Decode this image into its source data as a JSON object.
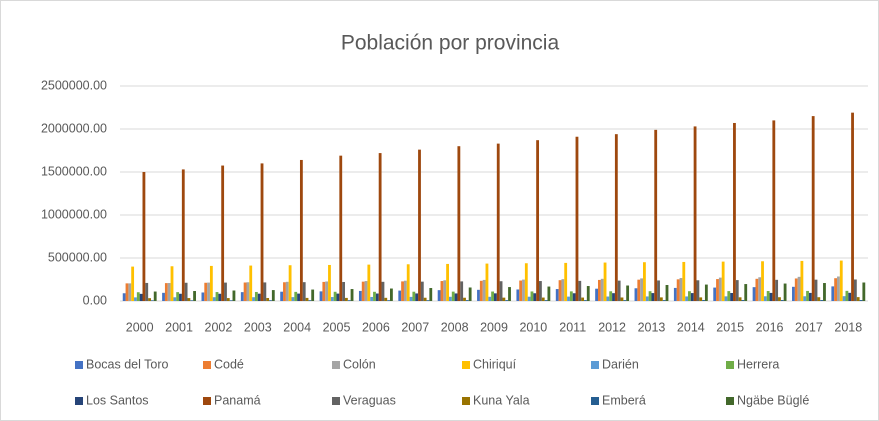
{
  "chart_data": {
    "type": "bar",
    "title": "Población por provincia",
    "categories": [
      "2000",
      "2001",
      "2002",
      "2003",
      "2004",
      "2005",
      "2006",
      "2007",
      "2008",
      "2009",
      "2010",
      "2011",
      "2012",
      "2013",
      "2014",
      "2015",
      "2016",
      "2017",
      "2018"
    ],
    "series": [
      {
        "name": "Bocas del Toro",
        "color": "#4472c4",
        "values": [
          90000,
          95000,
          99000,
          103000,
          108000,
          112000,
          117000,
          121000,
          126000,
          130000,
          134000,
          139000,
          143000,
          148000,
          152000,
          156000,
          161000,
          165000,
          170000
        ]
      },
      {
        "name": "Codé",
        "color": "#ed7d31",
        "values": [
          205000,
          208000,
          212000,
          215000,
          218000,
          222000,
          225000,
          228000,
          232000,
          235000,
          238000,
          242000,
          245000,
          248000,
          252000,
          255000,
          258000,
          262000,
          265000
        ]
      },
      {
        "name": "Colón",
        "color": "#a5a5a5",
        "values": [
          205000,
          209000,
          214000,
          218000,
          223000,
          227000,
          232000,
          236000,
          241000,
          245000,
          249000,
          254000,
          258000,
          263000,
          267000,
          272000,
          276000,
          281000,
          285000
        ]
      },
      {
        "name": "Chiriquí",
        "color": "#ffc000",
        "values": [
          400000,
          404000,
          408000,
          412000,
          416000,
          419000,
          423000,
          427000,
          431000,
          435000,
          439000,
          443000,
          447000,
          451000,
          454000,
          458000,
          462000,
          466000,
          470000
        ]
      },
      {
        "name": "Darién",
        "color": "#5b9bd5",
        "values": [
          42000,
          43000,
          44000,
          44000,
          45000,
          46000,
          47000,
          48000,
          49000,
          49000,
          50000,
          51000,
          52000,
          53000,
          53000,
          54000,
          55000,
          55000,
          56000
        ]
      },
      {
        "name": "Herrera",
        "color": "#70ad47",
        "values": [
          102000,
          103000,
          104000,
          105000,
          106000,
          107000,
          107000,
          108000,
          109000,
          110000,
          111000,
          112000,
          113000,
          114000,
          114000,
          115000,
          116000,
          117000,
          118000
        ]
      },
      {
        "name": "Los Santos",
        "color": "#264478",
        "values": [
          83000,
          84000,
          84000,
          85000,
          86000,
          86000,
          87000,
          88000,
          88000,
          89000,
          90000,
          90000,
          91000,
          92000,
          92000,
          93000,
          94000,
          94000,
          95000
        ]
      },
      {
        "name": "Panamá",
        "color": "#9e480e",
        "values": [
          1500000,
          1530000,
          1575000,
          1600000,
          1640000,
          1690000,
          1720000,
          1760000,
          1800000,
          1830000,
          1870000,
          1910000,
          1940000,
          1990000,
          2030000,
          2070000,
          2100000,
          2150000,
          2190000
        ]
      },
      {
        "name": "Veraguas",
        "color": "#636363",
        "values": [
          210000,
          212000,
          214000,
          216000,
          219000,
          221000,
          223000,
          225000,
          228000,
          230000,
          232000,
          234000,
          237000,
          239000,
          241000,
          243000,
          246000,
          248000,
          250000
        ]
      },
      {
        "name": "Kuna Yala",
        "color": "#997300",
        "values": [
          33000,
          34000,
          34000,
          35000,
          36000,
          36000,
          37000,
          38000,
          38000,
          39000,
          40000,
          40000,
          41000,
          42000,
          42000,
          43000,
          44000,
          44000,
          45000
        ]
      },
      {
        "name": "Emberá",
        "color": "#255e91",
        "values": [
          8000,
          8000,
          8000,
          9000,
          9000,
          9000,
          9000,
          9000,
          10000,
          10000,
          10000,
          10000,
          10000,
          10000,
          11000,
          11000,
          11000,
          11000,
          11000
        ]
      },
      {
        "name": "Ngäbe Büglé",
        "color": "#43682b",
        "values": [
          110000,
          116000,
          122000,
          127000,
          133000,
          139000,
          145000,
          151000,
          157000,
          162000,
          168000,
          174000,
          180000,
          186000,
          191000,
          197000,
          203000,
          209000,
          215000
        ]
      }
    ],
    "ylim": [
      0,
      2500000
    ],
    "yticks": [
      {
        "value": 0,
        "label": "0.00"
      },
      {
        "value": 500000,
        "label": "500000.00"
      },
      {
        "value": 1000000,
        "label": "1000000.00"
      },
      {
        "value": 1500000,
        "label": "1500000.00"
      },
      {
        "value": 2000000,
        "label": "2000000.00"
      },
      {
        "value": 2500000,
        "label": "2500000.00"
      }
    ],
    "grid": true
  }
}
